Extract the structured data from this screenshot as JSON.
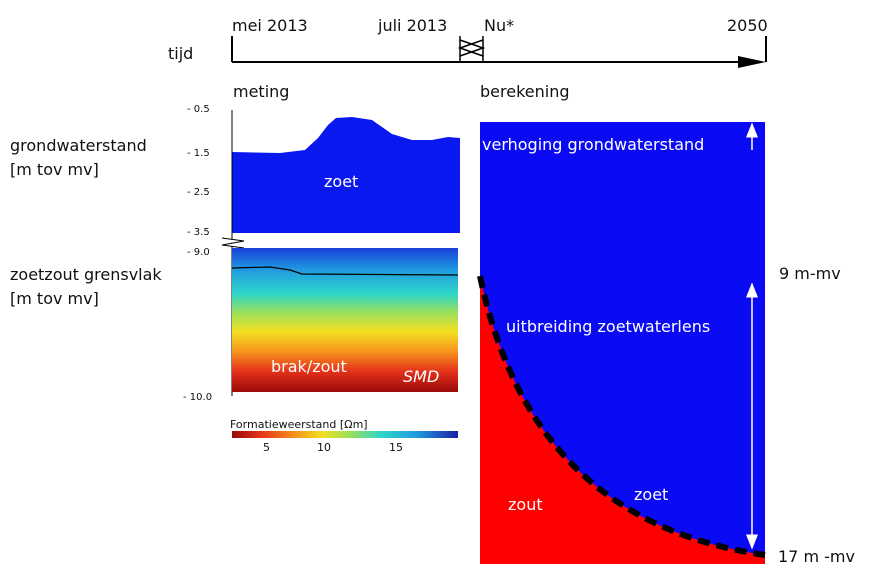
{
  "timeline": {
    "label": "tijd",
    "marks": [
      "mei 2013",
      "juli 2013",
      "Nu*",
      "2050"
    ]
  },
  "measurement": {
    "title": "meting",
    "groundwater": {
      "label": "grondwaterstand",
      "unit": "[m tov mv]",
      "ticks": [
        "- 0.5",
        "- 1.5",
        "- 2.5",
        "- 3.5"
      ],
      "region": "zoet"
    },
    "interface": {
      "label": "zoetzout grensvlak",
      "unit": "[m tov mv]",
      "ticks": [
        "- 9.0",
        "- 10.0"
      ],
      "region": "brak/zout",
      "source": "SMD"
    },
    "colorbar": {
      "title": "Formatieweerstand [Ωm]",
      "ticks": [
        "5",
        "10",
        "15"
      ]
    }
  },
  "calculation": {
    "title": "berekening",
    "rise": "verhoging grondwaterstand",
    "expansion": "uitbreiding zoetwaterlens",
    "fresh": "zoet",
    "salt": "zout",
    "top_depth": "9 m-mv",
    "bottom_depth": "17 m -mv"
  }
}
